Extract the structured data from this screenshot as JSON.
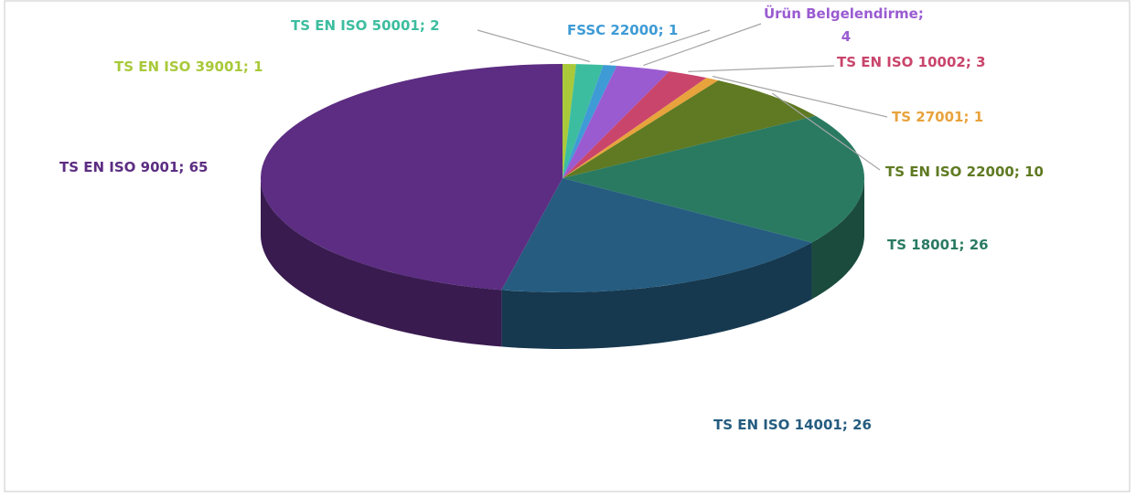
{
  "chart_data": {
    "type": "pie3d",
    "categories": [
      "TS EN ISO 39001",
      "TS EN ISO 50001",
      "FSSC 22000",
      "Ürün Belgelendirme",
      "TS EN ISO 10002",
      "TS 27001",
      "TS EN ISO 22000",
      "TS 18001",
      "TS EN ISO 14001",
      "TS EN ISO 9001"
    ],
    "values": [
      1,
      2,
      1,
      4,
      3,
      1,
      10,
      26,
      26,
      65
    ],
    "colors": [
      "#a9c93a",
      "#3dbd9f",
      "#3e9bd5",
      "#9a5bd1",
      "#c9456b",
      "#e8a33c",
      "#5f7a22",
      "#2a7a62",
      "#255c80",
      "#5c2d82"
    ],
    "label_separator": "; "
  }
}
